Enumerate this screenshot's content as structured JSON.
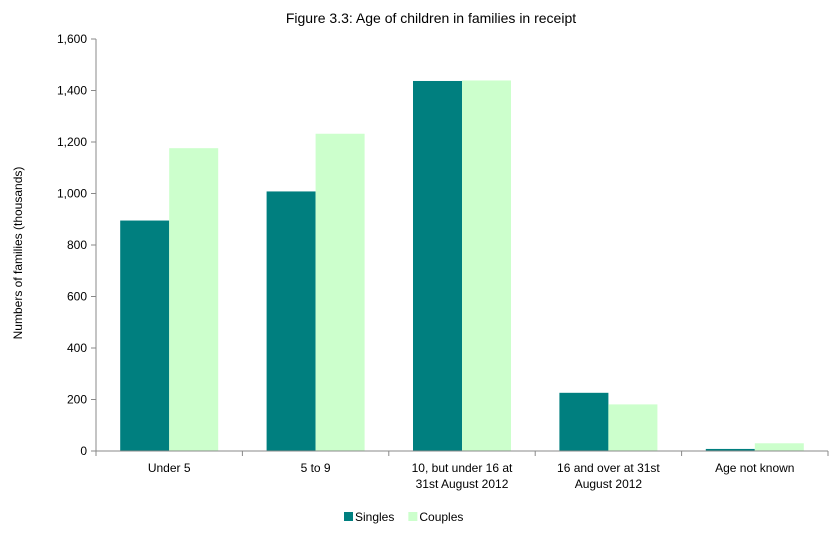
{
  "chart_data": {
    "type": "bar",
    "title": "Figure 3.3: Age of children in families in receipt",
    "xlabel": "",
    "ylabel": "Numbers of families (thousands)",
    "categories": [
      [
        "Under 5"
      ],
      [
        "5 to 9"
      ],
      [
        "10, but under 16 at",
        "31st August 2012"
      ],
      [
        "16 and over at 31st",
        "August 2012"
      ],
      [
        "Age not known"
      ]
    ],
    "series": [
      {
        "name": "Singles",
        "color": "#007f7f",
        "values": [
          895,
          1008,
          1437,
          226,
          8
        ]
      },
      {
        "name": "Couples",
        "color": "#ccffcc",
        "values": [
          1176,
          1232,
          1439,
          181,
          30
        ]
      }
    ],
    "ylim": [
      0,
      1600
    ],
    "yticks": [
      0,
      200,
      400,
      600,
      800,
      1000,
      1200,
      1400,
      1600
    ],
    "ytick_labels": [
      "0",
      "200",
      "400",
      "600",
      "800",
      "1,000",
      "1,200",
      "1,400",
      "1,600"
    ],
    "grid": false,
    "legend_position": "bottom"
  }
}
